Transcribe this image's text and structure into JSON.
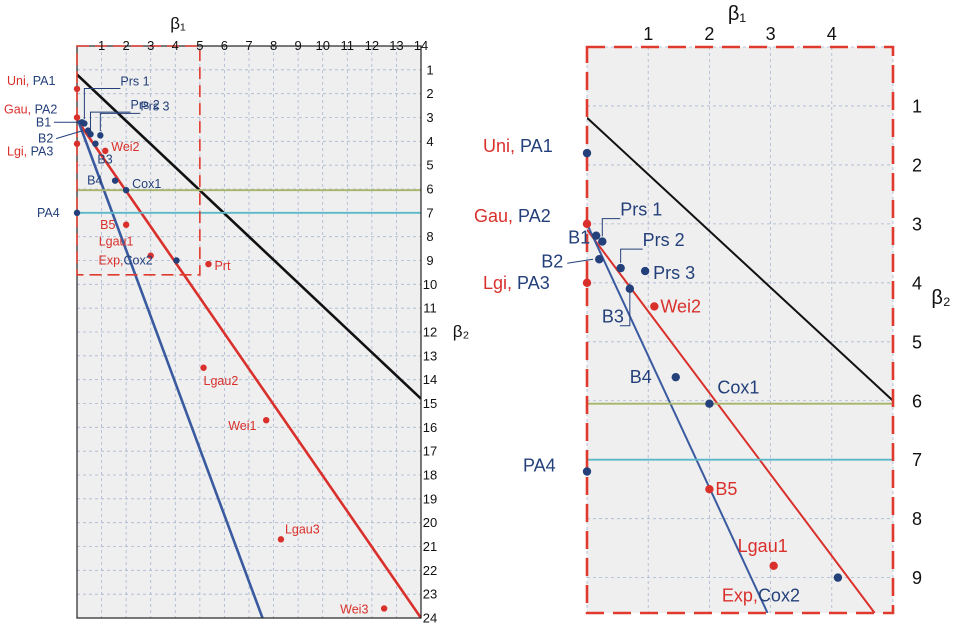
{
  "chart_data": [
    {
      "type": "scatter",
      "panel": "left",
      "x_label": "β₁",
      "y_label": "β₂",
      "x_ticks": [
        "1",
        "2",
        "3",
        "4",
        "5",
        "6",
        "7",
        "8",
        "9",
        "10",
        "11",
        "12",
        "13",
        "14"
      ],
      "y_ticks": [
        "1",
        "2",
        "3",
        "4",
        "5",
        "6",
        "7",
        "8",
        "9",
        "10",
        "11",
        "12",
        "13",
        "14",
        "15",
        "16",
        "17",
        "18",
        "19",
        "20",
        "21",
        "22",
        "23",
        "24"
      ],
      "xlim": [
        0,
        14
      ],
      "ylim": [
        0,
        24
      ],
      "y_axis_inverted": true,
      "zoom_box": {
        "x": [
          0,
          5
        ],
        "y": [
          0,
          9.6
        ]
      },
      "lines": [
        {
          "name": "black line",
          "color": "#111111",
          "from": [
            0,
            1.2
          ],
          "to": [
            14,
            14.8
          ]
        },
        {
          "name": "red line",
          "color": "#d9302c",
          "from": [
            0,
            3.1
          ],
          "to": [
            14,
            24
          ]
        },
        {
          "name": "blue line",
          "color": "#3a5aa0",
          "from": [
            0,
            3.0
          ],
          "to": [
            7.55,
            24
          ]
        },
        {
          "name": "olive line",
          "color": "#a8b46a",
          "from": [
            0,
            6.05
          ],
          "to": [
            14,
            6.05
          ]
        },
        {
          "name": "cyan line",
          "color": "#5ab8c8",
          "from": [
            0,
            7.0
          ],
          "to": [
            14,
            7.0
          ]
        }
      ],
      "points": [
        {
          "label": "Uni, PA1",
          "x": 0,
          "y": 1.8,
          "color": "#d9302c",
          "label_color": "#d9302c"
        },
        {
          "label": "Gau, PA2",
          "x": 0,
          "y": 3.0,
          "color": "#d9302c",
          "label_color": "#d9302c"
        },
        {
          "label": "Lgi, PA3",
          "x": 0,
          "y": 4.1,
          "color": "#d9302c",
          "label_color": "#d9302c"
        },
        {
          "label": "PA4",
          "x": 0,
          "y": 7.0,
          "color": "#24407a",
          "label_color": "#24407a"
        },
        {
          "label": "Prs 1",
          "x": 0.3,
          "y": 3.25,
          "color": "#24407a",
          "label_color": "#24407a"
        },
        {
          "label": "Prs 2",
          "x": 0.55,
          "y": 3.7,
          "color": "#24407a",
          "label_color": "#24407a"
        },
        {
          "label": "Prs 3",
          "x": 0.95,
          "y": 3.75,
          "color": "#24407a",
          "label_color": "#24407a"
        },
        {
          "label": "B1",
          "x": 0.2,
          "y": 3.2,
          "color": "#24407a",
          "label_color": "#24407a"
        },
        {
          "label": "B2",
          "x": 0.45,
          "y": 3.55,
          "color": "#24407a",
          "label_color": "#24407a"
        },
        {
          "label": "B3",
          "x": 0.75,
          "y": 4.1,
          "color": "#24407a",
          "label_color": "#24407a"
        },
        {
          "label": "Wei2",
          "x": 1.15,
          "y": 4.4,
          "color": "#d9302c",
          "label_color": "#d9302c"
        },
        {
          "label": "B4",
          "x": 1.55,
          "y": 5.65,
          "color": "#24407a",
          "label_color": "#24407a"
        },
        {
          "label": "Cox1",
          "x": 2.0,
          "y": 6.05,
          "color": "#24407a",
          "label_color": "#24407a"
        },
        {
          "label": "B5",
          "x": 2.0,
          "y": 7.5,
          "color": "#d9302c",
          "label_color": "#d9302c"
        },
        {
          "label": "Lgau1",
          "x": 3.0,
          "y": 8.8,
          "color": "#d9302c",
          "label_color": "#d9302c"
        },
        {
          "label": "Exp, Cox2",
          "x": 4.05,
          "y": 9.0,
          "color": "#24407a",
          "label_color": "#d9302c"
        },
        {
          "label": "Prt",
          "x": 5.35,
          "y": 9.15,
          "color": "#d9302c",
          "label_color": "#d9302c"
        },
        {
          "label": "Lgau2",
          "x": 5.15,
          "y": 13.5,
          "color": "#d9302c",
          "label_color": "#d9302c"
        },
        {
          "label": "Wei1",
          "x": 7.7,
          "y": 15.7,
          "color": "#d9302c",
          "label_color": "#d9302c"
        },
        {
          "label": "Lgau3",
          "x": 8.3,
          "y": 20.7,
          "color": "#d9302c",
          "label_color": "#d9302c"
        },
        {
          "label": "Wei3",
          "x": 12.5,
          "y": 23.6,
          "color": "#d9302c",
          "label_color": "#d9302c"
        }
      ]
    },
    {
      "type": "scatter",
      "panel": "right (zoom of dashed box)",
      "x_label": "β₁",
      "y_label": "β₂",
      "x_ticks": [
        "1",
        "2",
        "3",
        "4"
      ],
      "y_ticks": [
        "1",
        "2",
        "3",
        "4",
        "5",
        "6",
        "7",
        "8",
        "9"
      ],
      "xlim": [
        0,
        5
      ],
      "ylim": [
        0,
        9.6
      ],
      "y_axis_inverted": true,
      "lines": [
        {
          "name": "black line",
          "color": "#111111",
          "from": [
            0,
            1.2
          ],
          "to": [
            5,
            6.0
          ]
        },
        {
          "name": "red line",
          "color": "#d9302c",
          "from": [
            0,
            3.1
          ],
          "to": [
            4.7,
            9.6
          ]
        },
        {
          "name": "blue line",
          "color": "#3a5aa0",
          "from": [
            0,
            3.0
          ],
          "to": [
            2.95,
            9.6
          ]
        },
        {
          "name": "olive line",
          "color": "#a8b46a",
          "from": [
            0,
            6.05
          ],
          "to": [
            5,
            6.05
          ]
        },
        {
          "name": "cyan line",
          "color": "#5ab8c8",
          "from": [
            0,
            7.0
          ],
          "to": [
            5,
            7.0
          ]
        }
      ],
      "points": [
        {
          "label": "Uni, PA1",
          "x": 0,
          "y": 1.8,
          "color": "#24407a",
          "label_color": "#d9302c"
        },
        {
          "label": "Gau, PA2",
          "x": 0,
          "y": 3.0,
          "color": "#d9302c",
          "label_color": "#d9302c"
        },
        {
          "label": "Lgi, PA3",
          "x": 0,
          "y": 4.0,
          "color": "#d9302c",
          "label_color": "#d9302c"
        },
        {
          "label": "PA4",
          "x": 0,
          "y": 7.2,
          "color": "#24407a",
          "label_color": "#24407a"
        },
        {
          "label": "B1",
          "x": 0.15,
          "y": 3.2,
          "color": "#24407a",
          "label_color": "#24407a"
        },
        {
          "label": "Prs 1",
          "x": 0.25,
          "y": 3.3,
          "color": "#24407a",
          "label_color": "#24407a"
        },
        {
          "label": "B2",
          "x": 0.2,
          "y": 3.6,
          "color": "#24407a",
          "label_color": "#24407a"
        },
        {
          "label": "Prs 2",
          "x": 0.55,
          "y": 3.75,
          "color": "#24407a",
          "label_color": "#24407a"
        },
        {
          "label": "Prs 3",
          "x": 0.95,
          "y": 3.8,
          "color": "#24407a",
          "label_color": "#24407a"
        },
        {
          "label": "B3",
          "x": 0.7,
          "y": 4.1,
          "color": "#24407a",
          "label_color": "#24407a"
        },
        {
          "label": "Wei2",
          "x": 1.1,
          "y": 4.4,
          "color": "#d9302c",
          "label_color": "#d9302c"
        },
        {
          "label": "B4",
          "x": 1.45,
          "y": 5.6,
          "color": "#24407a",
          "label_color": "#24407a"
        },
        {
          "label": "Cox1",
          "x": 2.0,
          "y": 6.05,
          "color": "#24407a",
          "label_color": "#24407a"
        },
        {
          "label": "B5",
          "x": 2.0,
          "y": 7.5,
          "color": "#d9302c",
          "label_color": "#d9302c"
        },
        {
          "label": "Lgau1",
          "x": 3.05,
          "y": 8.8,
          "color": "#d9302c",
          "label_color": "#d9302c"
        },
        {
          "label": "Exp, Cox2",
          "x": 4.1,
          "y": 9.0,
          "color": "#24407a",
          "label_color": "#d9302c"
        }
      ]
    }
  ]
}
